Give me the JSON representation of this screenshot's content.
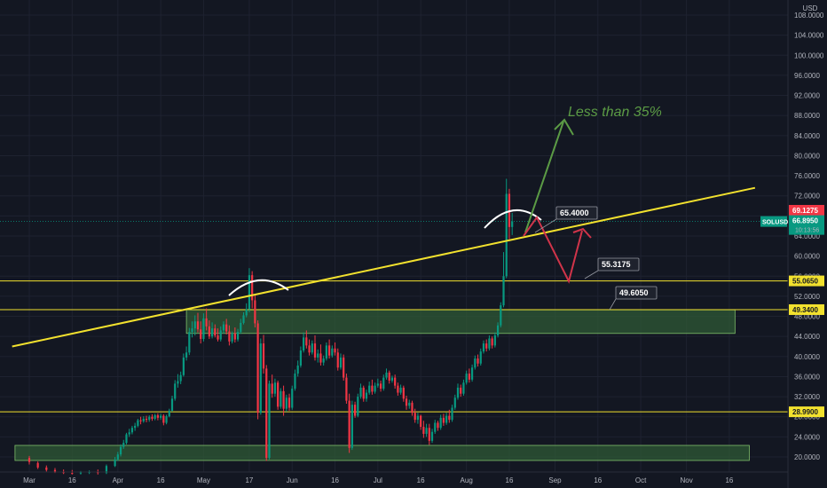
{
  "chart_data": {
    "type": "candlestick",
    "symbol": "SOLUSD",
    "currency": "USD",
    "y_ticks": [
      20,
      24,
      28,
      32,
      36,
      40,
      44,
      48,
      52,
      56,
      60,
      64,
      68,
      72,
      76,
      80,
      84,
      88,
      92,
      96,
      100,
      104,
      108
    ],
    "y_tick_labels": [
      "20.0000",
      "24.0000",
      "28.0000",
      "32.0000",
      "36.0000",
      "40.0000",
      "44.0000",
      "48.0000",
      "52.0000",
      "56.0000",
      "60.0000",
      "64.0000",
      "68.0000",
      "72.0000",
      "76.0000",
      "80.0000",
      "84.0000",
      "88.0000",
      "92.0000",
      "96.0000",
      "100.0000",
      "104.0000",
      "108.0000"
    ],
    "ylim": [
      17.5,
      110
    ],
    "x_labels": [
      {
        "day": 0,
        "text": "Mar"
      },
      {
        "day": 15,
        "text": "16"
      },
      {
        "day": 31,
        "text": "Apr"
      },
      {
        "day": 46,
        "text": "16"
      },
      {
        "day": 61,
        "text": "May"
      },
      {
        "day": 77,
        "text": "17"
      },
      {
        "day": 92,
        "text": "Jun"
      },
      {
        "day": 107,
        "text": "16"
      },
      {
        "day": 122,
        "text": "Jul"
      },
      {
        "day": 137,
        "text": "16"
      },
      {
        "day": 153,
        "text": "Aug"
      },
      {
        "day": 168,
        "text": "16"
      },
      {
        "day": 184,
        "text": "Sep"
      },
      {
        "day": 199,
        "text": "16"
      },
      {
        "day": 214,
        "text": "Oct"
      },
      {
        "day": 230,
        "text": "Nov"
      },
      {
        "day": 245,
        "text": "16"
      }
    ],
    "xlim_days": [
      -5.5,
      250
    ],
    "horizontal_levels": [
      {
        "value": 55.065,
        "label": "55.0650"
      },
      {
        "value": 49.34,
        "label": "49.3400"
      },
      {
        "value": 28.99,
        "label": "28.9900"
      }
    ],
    "zones": [
      {
        "from_day": 55,
        "to_day": 247,
        "low": 44.6,
        "high": 49.3
      },
      {
        "from_day": -5,
        "to_day": 252,
        "low": 19.3,
        "high": 22.3
      }
    ],
    "trendline": {
      "points": [
        {
          "day": -6,
          "value": 42.0
        },
        {
          "day": 254,
          "value": 73.6
        }
      ]
    },
    "dotted_level": 66.895,
    "price_tags": [
      {
        "value": 69.1275,
        "label": "69.1275",
        "color": "#f23645"
      },
      {
        "value": 66.895,
        "label": "66.8950",
        "sub": "10:13:56",
        "color": "#089981",
        "symbol": "SOLUSD"
      }
    ],
    "annotations": [
      {
        "label": "65.4000",
        "value": 65.4,
        "day": 180
      },
      {
        "label": "55.3175",
        "value": 55.3175,
        "day": 198
      },
      {
        "label": "49.6050",
        "value": 49.605,
        "day": 189
      }
    ],
    "projection_text": "Less than 35%",
    "projection_color": "#5b9b45",
    "up_color": "#089981",
    "down_color": "#f23645",
    "level_color": "#f2e12e",
    "zone_color": "#2f5a35",
    "candles": [
      [
        0,
        19.8,
        20.2,
        19.0,
        18.5,
        false
      ],
      [
        3,
        18.8,
        19.1,
        17.9,
        17.6,
        false
      ],
      [
        6,
        17.9,
        18.3,
        17.4,
        17.1,
        false
      ],
      [
        9,
        17.4,
        17.8,
        17.0,
        16.8,
        false
      ],
      [
        12,
        17.0,
        17.5,
        16.8,
        16.6,
        false
      ],
      [
        15,
        16.8,
        17.4,
        16.7,
        16.5,
        false
      ],
      [
        18,
        16.7,
        17.2,
        16.9,
        16.5,
        false
      ],
      [
        21,
        16.9,
        17.3,
        17.0,
        16.6,
        false
      ],
      [
        24,
        17.0,
        17.5,
        16.8,
        16.5,
        false
      ],
      [
        27,
        16.8,
        18.5,
        18.2,
        16.6,
        false
      ],
      [
        30,
        18.2,
        20.0,
        19.5,
        18.0,
        false
      ],
      [
        31,
        19.5,
        21.0,
        20.5,
        19.2,
        false
      ],
      [
        32,
        20.5,
        22.5,
        22.0,
        20.1,
        false
      ],
      [
        33,
        22.0,
        23.4,
        22.8,
        21.6,
        false
      ],
      [
        34,
        22.8,
        24.8,
        24.5,
        22.5,
        false
      ],
      [
        35,
        24.5,
        25.6,
        24.9,
        24.0,
        false
      ],
      [
        36,
        24.9,
        26.2,
        25.8,
        24.5,
        false
      ],
      [
        37,
        25.8,
        26.8,
        26.2,
        25.2,
        false
      ],
      [
        38,
        26.2,
        27.6,
        27.3,
        25.9,
        false
      ],
      [
        39,
        27.3,
        28.0,
        27.1,
        26.5,
        false
      ],
      [
        40,
        27.1,
        28.1,
        27.6,
        26.8,
        false
      ],
      [
        41,
        27.6,
        28.2,
        27.4,
        26.9,
        false
      ],
      [
        42,
        27.4,
        28.3,
        28.0,
        27.0,
        false
      ],
      [
        43,
        28.0,
        28.5,
        27.6,
        27.2,
        false
      ],
      [
        44,
        27.6,
        28.6,
        28.3,
        27.3,
        false
      ],
      [
        45,
        28.3,
        28.7,
        27.8,
        27.3,
        false
      ],
      [
        46,
        27.8,
        28.6,
        28.2,
        27.4,
        false
      ],
      [
        47,
        28.2,
        28.5,
        26.8,
        26.3,
        false
      ],
      [
        48,
        26.8,
        28.4,
        28.1,
        26.5,
        false
      ],
      [
        49,
        28.1,
        29.6,
        29.2,
        27.9,
        false
      ],
      [
        50,
        29.2,
        32.2,
        31.6,
        29.0,
        false
      ],
      [
        51,
        31.6,
        35.3,
        34.6,
        31.2,
        false
      ],
      [
        52,
        34.6,
        36.5,
        35.1,
        33.8,
        false
      ],
      [
        53,
        35.1,
        37.0,
        36.3,
        34.5,
        false
      ],
      [
        54,
        36.3,
        40.6,
        39.8,
        36.0,
        false
      ],
      [
        55,
        39.8,
        42.0,
        40.8,
        39.2,
        false
      ],
      [
        56,
        40.8,
        45.7,
        44.9,
        40.3,
        false
      ],
      [
        57,
        44.9,
        47.0,
        45.6,
        43.8,
        false
      ],
      [
        58,
        45.6,
        48.2,
        47.0,
        44.2,
        false
      ],
      [
        59,
        47.0,
        48.7,
        45.4,
        44.8,
        false
      ],
      [
        60,
        45.4,
        47.0,
        43.5,
        42.6,
        false
      ],
      [
        61,
        43.5,
        48.6,
        47.6,
        43.0,
        false
      ],
      [
        62,
        47.6,
        49.6,
        46.0,
        45.2,
        false
      ],
      [
        63,
        46.0,
        47.2,
        44.0,
        43.5,
        false
      ],
      [
        64,
        44.0,
        46.8,
        45.6,
        43.6,
        false
      ],
      [
        65,
        45.6,
        46.4,
        44.2,
        43.8,
        false
      ],
      [
        66,
        44.2,
        45.6,
        43.4,
        43.0,
        false
      ],
      [
        67,
        43.4,
        46.0,
        45.2,
        43.0,
        false
      ],
      [
        68,
        45.2,
        47.0,
        46.4,
        44.6,
        false
      ],
      [
        69,
        46.4,
        47.5,
        45.0,
        44.4,
        false
      ],
      [
        70,
        45.0,
        46.2,
        43.0,
        42.2,
        false
      ],
      [
        71,
        43.0,
        45.0,
        44.6,
        42.6,
        false
      ],
      [
        72,
        44.6,
        45.8,
        43.4,
        42.8,
        false
      ],
      [
        73,
        43.4,
        45.5,
        44.9,
        43.0,
        false
      ],
      [
        74,
        44.9,
        47.5,
        46.7,
        44.5,
        false
      ],
      [
        75,
        46.7,
        48.8,
        48.2,
        46.4,
        false
      ],
      [
        76,
        48.2,
        50.6,
        49.4,
        47.8,
        false
      ],
      [
        77,
        49.4,
        57.6,
        56.2,
        48.8,
        false
      ],
      [
        78,
        56.2,
        57.0,
        51.2,
        49.6,
        false
      ],
      [
        79,
        51.2,
        52.3,
        46.6,
        45.8,
        false
      ],
      [
        80,
        46.6,
        47.2,
        28.8,
        27.5,
        false
      ],
      [
        81,
        28.8,
        43.6,
        42.6,
        28.4,
        false
      ],
      [
        82,
        42.6,
        44.3,
        37.6,
        36.6,
        false
      ],
      [
        83,
        37.6,
        38.3,
        19.8,
        19.2,
        false
      ],
      [
        84,
        19.8,
        35.2,
        34.6,
        19.5,
        false
      ],
      [
        85,
        34.6,
        36.4,
        32.6,
        31.8,
        false
      ],
      [
        86,
        32.6,
        35.6,
        34.8,
        32.0,
        false
      ],
      [
        87,
        34.8,
        35.2,
        30.0,
        29.4,
        false
      ],
      [
        88,
        30.0,
        33.7,
        33.1,
        29.6,
        false
      ],
      [
        89,
        33.1,
        34.2,
        29.6,
        28.2,
        false
      ],
      [
        90,
        29.6,
        32.4,
        31.8,
        29.0,
        false
      ],
      [
        91,
        31.8,
        32.6,
        29.8,
        29.2,
        false
      ],
      [
        92,
        29.8,
        34.2,
        33.6,
        29.4,
        false
      ],
      [
        93,
        33.6,
        37.4,
        36.6,
        33.2,
        false
      ],
      [
        94,
        36.6,
        39.2,
        38.2,
        36.0,
        false
      ],
      [
        95,
        38.2,
        42.0,
        41.2,
        37.8,
        false
      ],
      [
        96,
        41.2,
        44.8,
        43.8,
        40.8,
        false
      ],
      [
        97,
        43.8,
        45.2,
        42.2,
        41.6,
        false
      ],
      [
        98,
        42.2,
        43.4,
        40.8,
        40.2,
        false
      ],
      [
        99,
        40.8,
        43.2,
        42.6,
        40.4,
        false
      ],
      [
        100,
        42.6,
        44.2,
        39.8,
        39.2,
        false
      ],
      [
        101,
        39.8,
        41.4,
        40.6,
        38.8,
        false
      ],
      [
        102,
        40.6,
        42.4,
        38.8,
        38.2,
        false
      ],
      [
        103,
        38.8,
        40.2,
        39.6,
        38.2,
        false
      ],
      [
        104,
        39.6,
        42.8,
        42.2,
        39.2,
        false
      ],
      [
        105,
        42.2,
        43.4,
        40.2,
        39.6,
        false
      ],
      [
        106,
        40.2,
        42.2,
        41.6,
        39.8,
        false
      ],
      [
        107,
        41.6,
        42.8,
        40.8,
        40.2,
        false
      ],
      [
        108,
        40.8,
        41.6,
        37.8,
        37.2,
        false
      ],
      [
        109,
        37.8,
        40.6,
        39.8,
        37.4,
        false
      ],
      [
        110,
        39.8,
        40.4,
        35.8,
        35.2,
        false
      ],
      [
        111,
        35.8,
        36.6,
        31.2,
        30.6,
        false
      ],
      [
        112,
        31.2,
        32.6,
        21.8,
        20.8,
        false
      ],
      [
        113,
        21.8,
        31.2,
        30.4,
        21.4,
        false
      ],
      [
        114,
        30.4,
        31.0,
        28.2,
        27.8,
        false
      ],
      [
        115,
        28.2,
        32.6,
        32.0,
        27.9,
        false
      ],
      [
        116,
        32.0,
        34.6,
        33.8,
        31.6,
        false
      ],
      [
        117,
        33.8,
        34.2,
        31.6,
        31.0,
        false
      ],
      [
        118,
        31.6,
        33.4,
        32.8,
        31.0,
        false
      ],
      [
        119,
        32.8,
        35.0,
        34.2,
        32.4,
        false
      ],
      [
        120,
        34.2,
        35.4,
        33.0,
        32.4,
        false
      ],
      [
        121,
        33.0,
        34.8,
        34.2,
        32.6,
        false
      ],
      [
        122,
        34.2,
        35.6,
        34.6,
        33.8,
        false
      ],
      [
        123,
        34.6,
        35.2,
        33.6,
        33.0,
        false
      ],
      [
        124,
        33.6,
        36.4,
        35.8,
        33.2,
        false
      ],
      [
        125,
        35.8,
        37.6,
        36.8,
        35.4,
        false
      ],
      [
        126,
        36.8,
        37.2,
        35.2,
        34.6,
        false
      ],
      [
        127,
        35.2,
        36.2,
        35.8,
        34.8,
        false
      ],
      [
        128,
        35.8,
        36.4,
        34.2,
        33.6,
        false
      ],
      [
        129,
        34.2,
        34.8,
        32.8,
        32.2,
        false
      ],
      [
        130,
        32.8,
        34.4,
        33.8,
        32.4,
        false
      ],
      [
        131,
        33.8,
        34.2,
        31.6,
        31.0,
        false
      ],
      [
        132,
        31.6,
        32.2,
        30.2,
        29.4,
        false
      ],
      [
        133,
        30.2,
        31.4,
        30.8,
        29.6,
        false
      ],
      [
        134,
        30.8,
        31.2,
        28.8,
        28.2,
        false
      ],
      [
        135,
        28.8,
        29.6,
        27.4,
        26.8,
        false
      ],
      [
        136,
        27.4,
        28.8,
        28.2,
        26.6,
        false
      ],
      [
        137,
        28.2,
        28.4,
        26.0,
        25.4,
        false
      ],
      [
        138,
        26.0,
        27.2,
        24.6,
        23.8,
        false
      ],
      [
        139,
        24.6,
        26.6,
        25.8,
        24.0,
        false
      ],
      [
        140,
        25.8,
        26.6,
        23.2,
        22.4,
        false
      ],
      [
        141,
        23.2,
        25.6,
        25.0,
        22.8,
        false
      ],
      [
        142,
        25.0,
        27.4,
        26.8,
        24.6,
        false
      ],
      [
        143,
        26.8,
        27.2,
        25.8,
        25.2,
        false
      ],
      [
        144,
        25.8,
        28.4,
        27.8,
        25.4,
        false
      ],
      [
        145,
        27.8,
        28.6,
        26.8,
        26.2,
        false
      ],
      [
        146,
        26.8,
        28.8,
        28.2,
        26.4,
        false
      ],
      [
        147,
        28.2,
        29.4,
        27.4,
        26.8,
        false
      ],
      [
        148,
        27.4,
        30.4,
        29.8,
        27.0,
        false
      ],
      [
        149,
        29.8,
        32.4,
        31.8,
        29.4,
        false
      ],
      [
        150,
        31.8,
        34.6,
        33.8,
        31.4,
        false
      ],
      [
        151,
        33.8,
        34.4,
        32.6,
        32.0,
        false
      ],
      [
        152,
        32.6,
        35.4,
        34.8,
        32.2,
        false
      ],
      [
        153,
        34.8,
        37.2,
        36.6,
        34.4,
        false
      ],
      [
        154,
        36.6,
        37.6,
        35.4,
        34.8,
        false
      ],
      [
        155,
        35.4,
        38.4,
        37.8,
        35.0,
        false
      ],
      [
        156,
        37.8,
        40.2,
        39.6,
        37.4,
        false
      ],
      [
        157,
        39.6,
        40.4,
        38.6,
        38.0,
        false
      ],
      [
        158,
        38.6,
        41.6,
        41.0,
        38.2,
        false
      ],
      [
        159,
        41.0,
        43.2,
        42.6,
        40.6,
        false
      ],
      [
        160,
        42.6,
        43.4,
        41.6,
        41.0,
        false
      ],
      [
        161,
        41.6,
        44.2,
        43.6,
        41.2,
        false
      ],
      [
        162,
        43.6,
        44.0,
        42.2,
        41.6,
        false
      ],
      [
        163,
        42.2,
        44.8,
        44.2,
        41.8,
        false
      ],
      [
        164,
        44.2,
        46.8,
        46.2,
        43.8,
        false
      ],
      [
        165,
        46.2,
        50.8,
        50.2,
        45.8,
        false
      ],
      [
        166,
        50.2,
        60.8,
        56.0,
        49.8,
        false
      ],
      [
        167,
        56.0,
        75.4,
        72.4,
        55.6,
        false
      ],
      [
        168,
        72.4,
        73.4,
        65.8,
        63.4,
        false
      ],
      [
        169,
        65.8,
        68.6,
        66.9,
        64.2,
        false
      ]
    ]
  }
}
